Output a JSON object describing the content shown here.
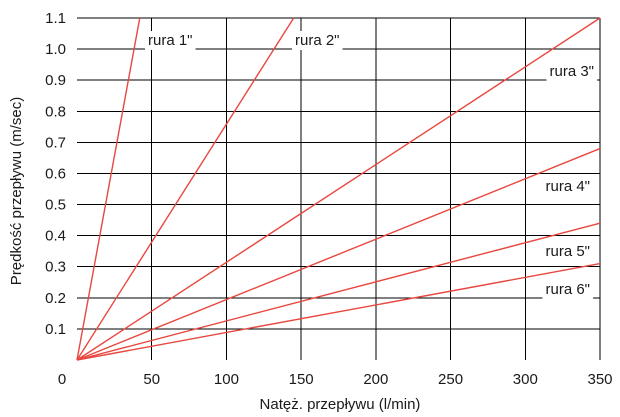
{
  "chart_data": {
    "type": "line",
    "title": "",
    "xlabel": "Natęż. przepływu (l/min)",
    "ylabel": "Prędkość przepływu (m/sec)",
    "xlim": [
      0,
      350
    ],
    "ylim": [
      0,
      1.1
    ],
    "x_ticks": [
      "0",
      "50",
      "100",
      "150",
      "200",
      "250",
      "300",
      "350"
    ],
    "y_ticks": [
      "0.1",
      "0.2",
      "0.3",
      "0.4",
      "0.5",
      "0.6",
      "0.7",
      "0.8",
      "0.9",
      "1.0",
      "1.1"
    ],
    "grid": true,
    "line_color": "#e8473f",
    "grid_color": "#000000",
    "series": [
      {
        "name": "rura 1\"",
        "x": [
          0,
          42
        ],
        "y": [
          0,
          1.1
        ]
      },
      {
        "name": "rura 2\"",
        "x": [
          0,
          145
        ],
        "y": [
          0,
          1.1
        ]
      },
      {
        "name": "rura 3\"",
        "x": [
          0,
          350
        ],
        "y": [
          0,
          1.1
        ]
      },
      {
        "name": "rura 4\"",
        "x": [
          0,
          350
        ],
        "y": [
          0,
          0.68
        ]
      },
      {
        "name": "rura 5\"",
        "x": [
          0,
          350
        ],
        "y": [
          0,
          0.44
        ]
      },
      {
        "name": "rura 6\"",
        "x": [
          0,
          350
        ],
        "y": [
          0,
          0.31
        ]
      }
    ]
  }
}
